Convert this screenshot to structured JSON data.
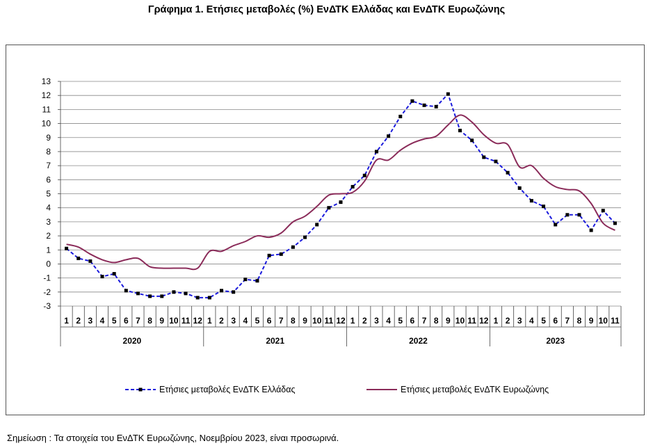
{
  "title": "Γράφημα 1. Ετήσιες μεταβολές (%) ΕνΔΤΚ Ελλάδας και ΕνΔΤΚ Ευρωζώνης",
  "note": "Σημείωση :  Τα στοιχεία του ΕνΔΤΚ Ευρωζώνης, Νοεμβρίου 2023, είναι προσωρινά.",
  "chart_data": {
    "type": "line",
    "title": "Γράφημα 1. Ετήσιες μεταβολές (%) ΕνΔΤΚ Ελλάδας και ΕνΔΤΚ Ευρωζώνης",
    "ylim": [
      -3,
      13
    ],
    "yticks": [
      -3,
      -2,
      -1,
      0,
      1,
      2,
      3,
      4,
      5,
      6,
      7,
      8,
      9,
      10,
      11,
      12,
      13
    ],
    "grid": true,
    "legend_position": "bottom",
    "years": [
      "2020",
      "2021",
      "2022",
      "2023"
    ],
    "months": [
      "1",
      "2",
      "3",
      "4",
      "5",
      "6",
      "7",
      "8",
      "9",
      "10",
      "11",
      "12"
    ],
    "months_last_year": [
      "1",
      "2",
      "3",
      "4",
      "5",
      "6",
      "7",
      "8",
      "9",
      "10",
      "11"
    ],
    "series": [
      {
        "name": "Ετήσιες μεταβολές ΕνΔΤΚ Ελλάδας",
        "color": "#1a1adc",
        "style": "dashed-markers",
        "values": [
          1.1,
          0.4,
          0.2,
          -0.9,
          -0.7,
          -1.9,
          -2.1,
          -2.3,
          -2.3,
          -2.0,
          -2.1,
          -2.4,
          -2.4,
          -1.9,
          -2.0,
          -1.1,
          -1.2,
          0.6,
          0.7,
          1.2,
          1.9,
          2.8,
          4.0,
          4.4,
          5.5,
          6.3,
          8.0,
          9.1,
          10.5,
          11.6,
          11.3,
          11.2,
          12.1,
          9.5,
          8.8,
          7.6,
          7.3,
          6.5,
          5.4,
          4.5,
          4.1,
          2.8,
          3.5,
          3.5,
          2.4,
          3.8,
          2.9
        ]
      },
      {
        "name": "Ετήσιες μεταβολές ΕνΔΤΚ Ευρωζώνης",
        "color": "#8b2c5a",
        "style": "solid",
        "values": [
          1.4,
          1.2,
          0.7,
          0.3,
          0.1,
          0.3,
          0.4,
          -0.2,
          -0.3,
          -0.3,
          -0.3,
          -0.3,
          0.9,
          0.9,
          1.3,
          1.6,
          2.0,
          1.9,
          2.2,
          3.0,
          3.4,
          4.1,
          4.9,
          5.0,
          5.1,
          5.9,
          7.4,
          7.4,
          8.1,
          8.6,
          8.9,
          9.1,
          9.9,
          10.6,
          10.1,
          9.2,
          8.6,
          8.5,
          6.9,
          7.0,
          6.1,
          5.5,
          5.3,
          5.2,
          4.3,
          2.9,
          2.4
        ]
      }
    ]
  }
}
